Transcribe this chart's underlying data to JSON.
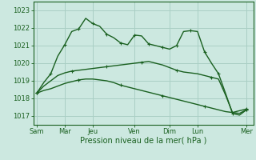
{
  "background_color": "#cce8e0",
  "grid_color": "#aacfc4",
  "line_color": "#1a6020",
  "xlabel": "Pression niveau de la mer( hPa )",
  "ylim": [
    1016.5,
    1023.5
  ],
  "yticks": [
    1017,
    1018,
    1019,
    1020,
    1021,
    1022,
    1023
  ],
  "x_day_labels": [
    "Sam",
    "Mar",
    "Jeu",
    "Ven",
    "Dim",
    "Lun",
    "Mer"
  ],
  "x_day_positions": [
    0,
    4,
    8,
    14,
    19,
    23,
    30
  ],
  "xlim": [
    -0.5,
    31
  ],
  "series": [
    {
      "x": [
        0,
        1,
        2,
        3,
        4,
        5,
        6,
        7,
        8,
        9,
        10,
        11,
        12,
        13,
        14,
        15,
        16,
        17,
        18,
        19,
        20,
        21,
        22,
        23,
        24,
        25,
        26,
        27,
        28,
        29,
        30
      ],
      "y": [
        1018.3,
        1018.45,
        1018.55,
        1018.7,
        1018.85,
        1018.95,
        1019.05,
        1019.1,
        1019.1,
        1019.05,
        1019.0,
        1018.9,
        1018.75,
        1018.65,
        1018.55,
        1018.45,
        1018.35,
        1018.25,
        1018.15,
        1018.05,
        1017.95,
        1017.85,
        1017.75,
        1017.65,
        1017.55,
        1017.45,
        1017.35,
        1017.25,
        1017.2,
        1017.3,
        1017.4
      ],
      "markevery": 6
    },
    {
      "x": [
        0,
        1,
        2,
        3,
        4,
        5,
        6,
        7,
        8,
        9,
        10,
        11,
        12,
        13,
        14,
        15,
        16,
        17,
        18,
        19,
        20,
        21,
        22,
        23,
        24,
        25,
        26,
        27,
        28,
        29,
        30
      ],
      "y": [
        1018.3,
        1018.7,
        1019.0,
        1019.3,
        1019.45,
        1019.55,
        1019.6,
        1019.65,
        1019.7,
        1019.75,
        1019.8,
        1019.85,
        1019.9,
        1019.95,
        1020.0,
        1020.05,
        1020.1,
        1020.0,
        1019.9,
        1019.75,
        1019.6,
        1019.5,
        1019.45,
        1019.4,
        1019.3,
        1019.2,
        1019.1,
        1018.2,
        1017.2,
        1017.15,
        1017.35
      ],
      "markevery": 5
    },
    {
      "x": [
        0,
        1,
        2,
        3,
        4,
        5,
        6,
        7,
        8,
        9,
        10,
        11,
        12,
        13,
        14,
        15,
        16,
        17,
        18,
        19,
        20,
        21,
        22,
        23,
        24,
        25,
        26,
        27,
        28,
        29,
        30
      ],
      "y": [
        1018.3,
        1018.9,
        1019.4,
        1020.4,
        1021.05,
        1021.8,
        1021.95,
        1022.55,
        1022.25,
        1022.1,
        1021.65,
        1021.45,
        1021.15,
        1021.05,
        1021.6,
        1021.55,
        1021.1,
        1021.0,
        1020.9,
        1020.8,
        1021.0,
        1021.8,
        1021.85,
        1021.8,
        1020.65,
        1020.0,
        1019.4,
        1018.3,
        1017.15,
        1017.05,
        1017.35
      ],
      "markevery": 2
    }
  ]
}
